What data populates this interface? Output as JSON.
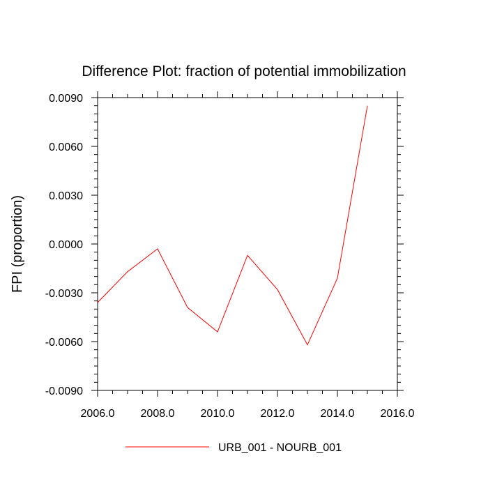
{
  "chart_data": {
    "type": "line",
    "title": "Difference Plot: fraction of potential immobilization",
    "xlabel": "",
    "ylabel": "FPI  (proportion)",
    "xlim": [
      2006,
      2016
    ],
    "ylim": [
      -0.009,
      0.009
    ],
    "x_ticks": [
      "2006.0",
      "2008.0",
      "2010.0",
      "2012.0",
      "2014.0",
      "2016.0"
    ],
    "y_ticks": [
      "0.0090",
      "0.0060",
      "0.0030",
      "0.0000",
      "-0.0030",
      "-0.0060",
      "-0.0090"
    ],
    "grid": false,
    "legend_position": "bottom",
    "series": [
      {
        "name": "URB_001 - NOURB_001",
        "color": "#ff0000",
        "x": [
          2006,
          2007,
          2008,
          2009,
          2010,
          2011,
          2012,
          2013,
          2014,
          2015
        ],
        "y": [
          -0.0036,
          -0.0017,
          -0.0003,
          -0.0039,
          -0.0054,
          -0.0007,
          -0.0028,
          -0.0062,
          -0.0021,
          0.0085
        ]
      }
    ]
  }
}
